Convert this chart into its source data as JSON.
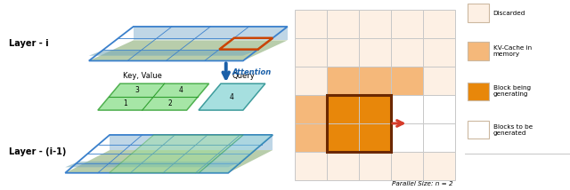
{
  "color_discarded": "#fdf0e4",
  "color_kv_cache": "#f5b87a",
  "color_block_generating": "#e8870a",
  "color_block_border_dark": "#6b2800",
  "color_to_generate": "#ffffff",
  "color_arrow": "#d63b2a",
  "color_grid_line": "#c8c8c8",
  "color_layer_blue": "#3a80cc",
  "color_image_sky": "#b8d8ef",
  "color_image_land": "#c8c070",
  "color_image_water": "#8ab8d0",
  "color_kv_green": "#7dc87d",
  "color_query_blue": "#7dc8d8",
  "cell_colors": [
    [
      "D",
      "D",
      "D",
      "D",
      "D"
    ],
    [
      "D",
      "D",
      "D",
      "D",
      "D"
    ],
    [
      "D",
      "K",
      "K",
      "K",
      "D"
    ],
    [
      "K",
      "B",
      "B",
      "T",
      "T"
    ],
    [
      "K",
      "B",
      "B",
      "T",
      "T"
    ],
    [
      "D",
      "D",
      "D",
      "D",
      "D"
    ]
  ],
  "legend_items": [
    {
      "label": "Discarded",
      "color": "#fdf0e4",
      "edgecolor": "#ccb8a0"
    },
    {
      "label": "KV-Cache in\nmemory",
      "color": "#f5b87a",
      "edgecolor": "#ccb8a0"
    },
    {
      "label": "Block being\ngenerating",
      "color": "#e8870a",
      "edgecolor": "#ccb8a0"
    },
    {
      "label": "Blocks to be\ngenerated",
      "color": "#ffffff",
      "edgecolor": "#ccb8a0"
    }
  ],
  "parallel_size_text": "Parallel Size: n = 2",
  "label_layer_i": "Layer - i",
  "label_layer_i1": "Layer - (i-1)",
  "label_key_value": "Key, Value",
  "label_query": "Query",
  "label_attention": "Attention",
  "kv_labels": [
    "1",
    "2",
    "3",
    "4"
  ]
}
